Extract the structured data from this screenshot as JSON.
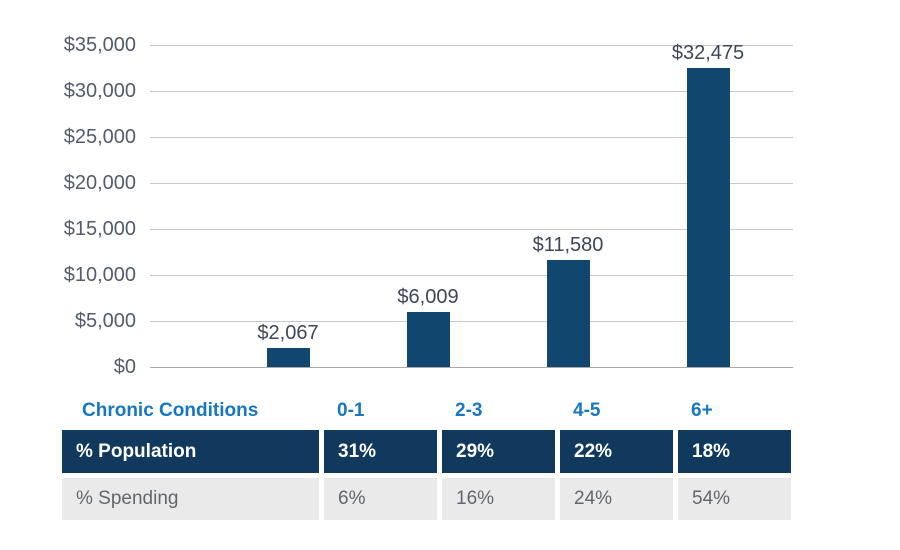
{
  "chart_data": {
    "type": "bar",
    "title": "",
    "xlabel": "Chronic Conditions",
    "ylabel": "",
    "categories": [
      "0-1",
      "2-3",
      "4-5",
      "6+"
    ],
    "values": [
      2067,
      6009,
      11580,
      32475
    ],
    "value_labels": [
      "$2,067",
      "$6,009",
      "$11,580",
      "$32,475"
    ],
    "ylim": [
      0,
      35000
    ],
    "y_ticks": [
      0,
      5000,
      10000,
      15000,
      20000,
      25000,
      30000,
      35000
    ],
    "y_tick_labels": [
      "$0",
      "$5,000",
      "$10,000",
      "$15,000",
      "$20,000",
      "$25,000",
      "$30,000",
      "$35,000"
    ],
    "grid": "horizontal-on",
    "legend": "none",
    "bar_color": "#11466E"
  },
  "table": {
    "header": {
      "label": "Chronic Conditions",
      "cols": [
        "0-1",
        "2-3",
        "4-5",
        "6+"
      ]
    },
    "population_row": {
      "label": "% Population",
      "values": [
        "31%",
        "29%",
        "22%",
        "18%"
      ]
    },
    "spending_row": {
      "label": "% Spending",
      "values": [
        "6%",
        "16%",
        "24%",
        "54%"
      ]
    }
  },
  "colors": {
    "bar": "#11466E",
    "table_navy_bg": "#10395D",
    "accent_blue": "#1877BE",
    "gray_row_bg": "#EAEAEA",
    "gridline": "#C9C9C9"
  }
}
